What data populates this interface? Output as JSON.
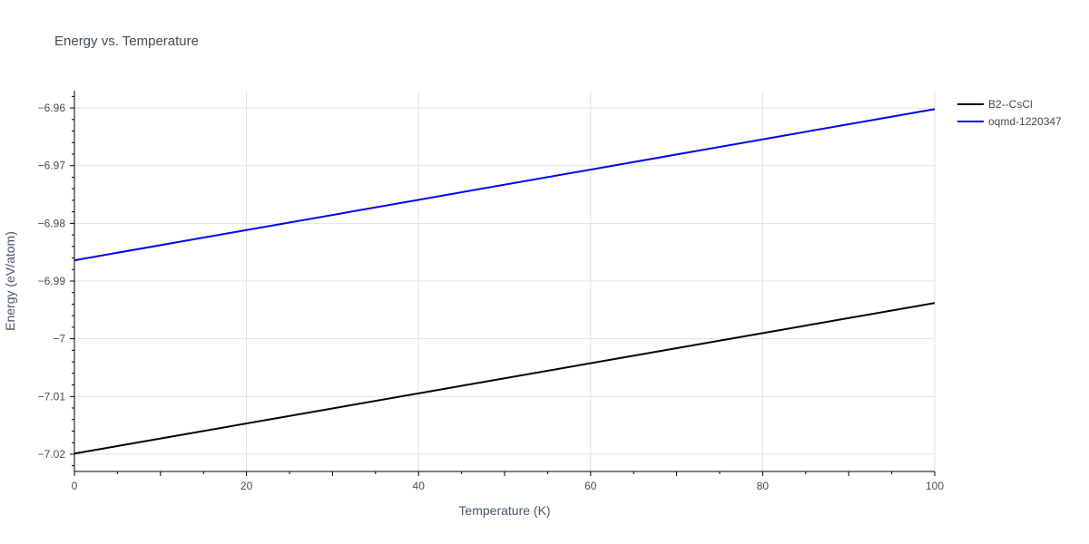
{
  "chart_data": {
    "type": "line",
    "title": "Energy vs. Temperature",
    "xlabel": "Temperature (K)",
    "ylabel": "Energy (eV/atom)",
    "xlim": [
      0,
      100
    ],
    "ylim": [
      -7.023,
      -6.957
    ],
    "x_ticks": [
      0,
      20,
      40,
      60,
      80,
      100
    ],
    "x_tick_labels": [
      "0",
      "20",
      "40",
      "60",
      "80",
      "100"
    ],
    "y_ticks": [
      -7.02,
      -7.01,
      -7.0,
      -6.99,
      -6.98,
      -6.97,
      -6.96
    ],
    "y_tick_labels": [
      "−7.02",
      "−7.01",
      "−7",
      "−6.99",
      "−6.98",
      "−6.97",
      "−6.96"
    ],
    "grid": true,
    "legend_position": "top-right",
    "series": [
      {
        "name": "B2--CsCl",
        "color": "#000000",
        "x": [
          0,
          100
        ],
        "y": [
          -7.0199,
          -6.9938
        ]
      },
      {
        "name": "oqmd-1220347",
        "color": "#0000ee",
        "x": [
          0,
          100
        ],
        "y": [
          -6.9864,
          -6.9602
        ]
      }
    ]
  }
}
